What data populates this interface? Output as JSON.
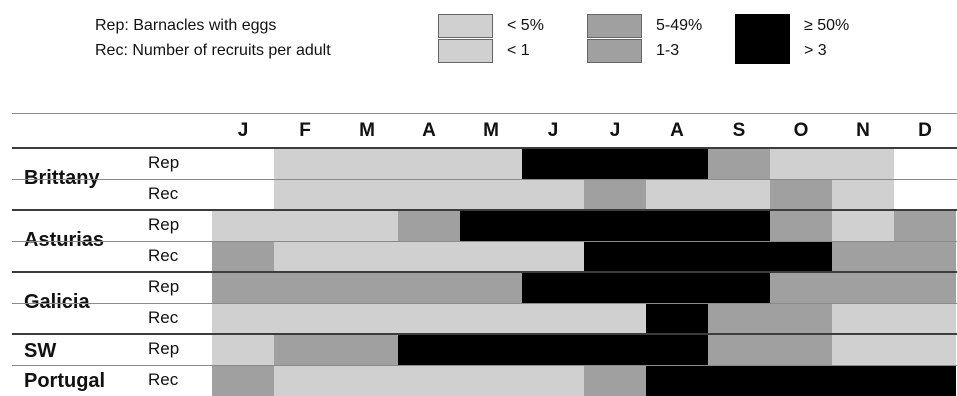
{
  "legend": {
    "rep_text": "Rep: Barnacles with eggs",
    "rec_text": "Rec: Number of recruits per adult",
    "low": {
      "rep": "< 5%",
      "rec": "< 1"
    },
    "mid": {
      "rep": "5-49%",
      "rec": "1-3"
    },
    "high": {
      "rep": "≥ 50%",
      "rec": "> 3"
    }
  },
  "colors": {
    "none": "#ffffff",
    "low": "#d0d0d0",
    "mid": "#a0a0a0",
    "high": "#000000"
  },
  "months": [
    "J",
    "F",
    "M",
    "A",
    "M",
    "J",
    "J",
    "A",
    "S",
    "O",
    "N",
    "D"
  ],
  "regions": [
    {
      "name": "Brittany",
      "rows": [
        {
          "label": "Rep",
          "cells": [
            "none",
            "low",
            "low",
            "low",
            "low",
            "high",
            "high",
            "high",
            "mid",
            "low",
            "low",
            "none"
          ]
        },
        {
          "label": "Rec",
          "cells": [
            "none",
            "low",
            "low",
            "low",
            "low",
            "low",
            "mid",
            "low",
            "low",
            "mid",
            "low",
            "none"
          ]
        }
      ]
    },
    {
      "name": "Asturias",
      "rows": [
        {
          "label": "Rep",
          "cells": [
            "low",
            "low",
            "low",
            "mid",
            "high",
            "high",
            "high",
            "high",
            "high",
            "mid",
            "low",
            "mid"
          ]
        },
        {
          "label": "Rec",
          "cells": [
            "mid",
            "low",
            "low",
            "low",
            "low",
            "low",
            "high",
            "high",
            "high",
            "high",
            "mid",
            "mid"
          ]
        }
      ]
    },
    {
      "name": "Galicia",
      "rows": [
        {
          "label": "Rep",
          "cells": [
            "mid",
            "mid",
            "mid",
            "mid",
            "mid",
            "high",
            "high",
            "high",
            "high",
            "mid",
            "mid",
            "mid"
          ]
        },
        {
          "label": "Rec",
          "cells": [
            "low",
            "low",
            "low",
            "low",
            "low",
            "low",
            "low",
            "high",
            "mid",
            "mid",
            "low",
            "low"
          ]
        }
      ]
    },
    {
      "name_lines": [
        "SW",
        "Portugal"
      ],
      "rows": [
        {
          "label": "Rep",
          "cells": [
            "low",
            "mid",
            "mid",
            "high",
            "high",
            "high",
            "high",
            "high",
            "mid",
            "mid",
            "low",
            "low"
          ]
        },
        {
          "label": "Rec",
          "cells": [
            "mid",
            "low",
            "low",
            "low",
            "low",
            "low",
            "mid",
            "high",
            "high",
            "high",
            "high",
            "high"
          ]
        }
      ]
    }
  ]
}
